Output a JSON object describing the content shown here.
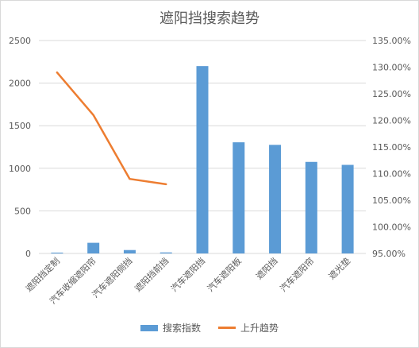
{
  "chart_data": {
    "type": "bar",
    "title": "遮阳挡搜索趋势",
    "categories": [
      "遮阳挡定制",
      "汽车收缩遮阳帘",
      "汽车遮阳侧挡",
      "遮阳挡前挡",
      "汽车遮阳挡",
      "汽车遮阳板",
      "遮阳挡",
      "汽车遮阳帘",
      "遮光垫"
    ],
    "series": [
      {
        "name": "搜索指数",
        "type": "bar",
        "axis": "left",
        "color": "#5b9bd5",
        "values": [
          10,
          125,
          40,
          12,
          2200,
          1305,
          1275,
          1075,
          1040
        ]
      },
      {
        "name": "上升趋势",
        "type": "line",
        "axis": "right",
        "color": "#ed7d31",
        "values": [
          1.29,
          1.21,
          1.09,
          1.08,
          null,
          null,
          null,
          null,
          null
        ]
      }
    ],
    "left_axis": {
      "ylim": [
        0,
        2500
      ],
      "ticks": [
        0,
        500,
        1000,
        1500,
        2000,
        2500
      ]
    },
    "right_axis": {
      "ylim": [
        0.95,
        1.35
      ],
      "ticks": [
        "95.00%",
        "100.00%",
        "105.00%",
        "110.00%",
        "115.00%",
        "120.00%",
        "125.00%",
        "130.00%",
        "135.00%"
      ]
    },
    "grid": true,
    "legend_position": "bottom"
  }
}
